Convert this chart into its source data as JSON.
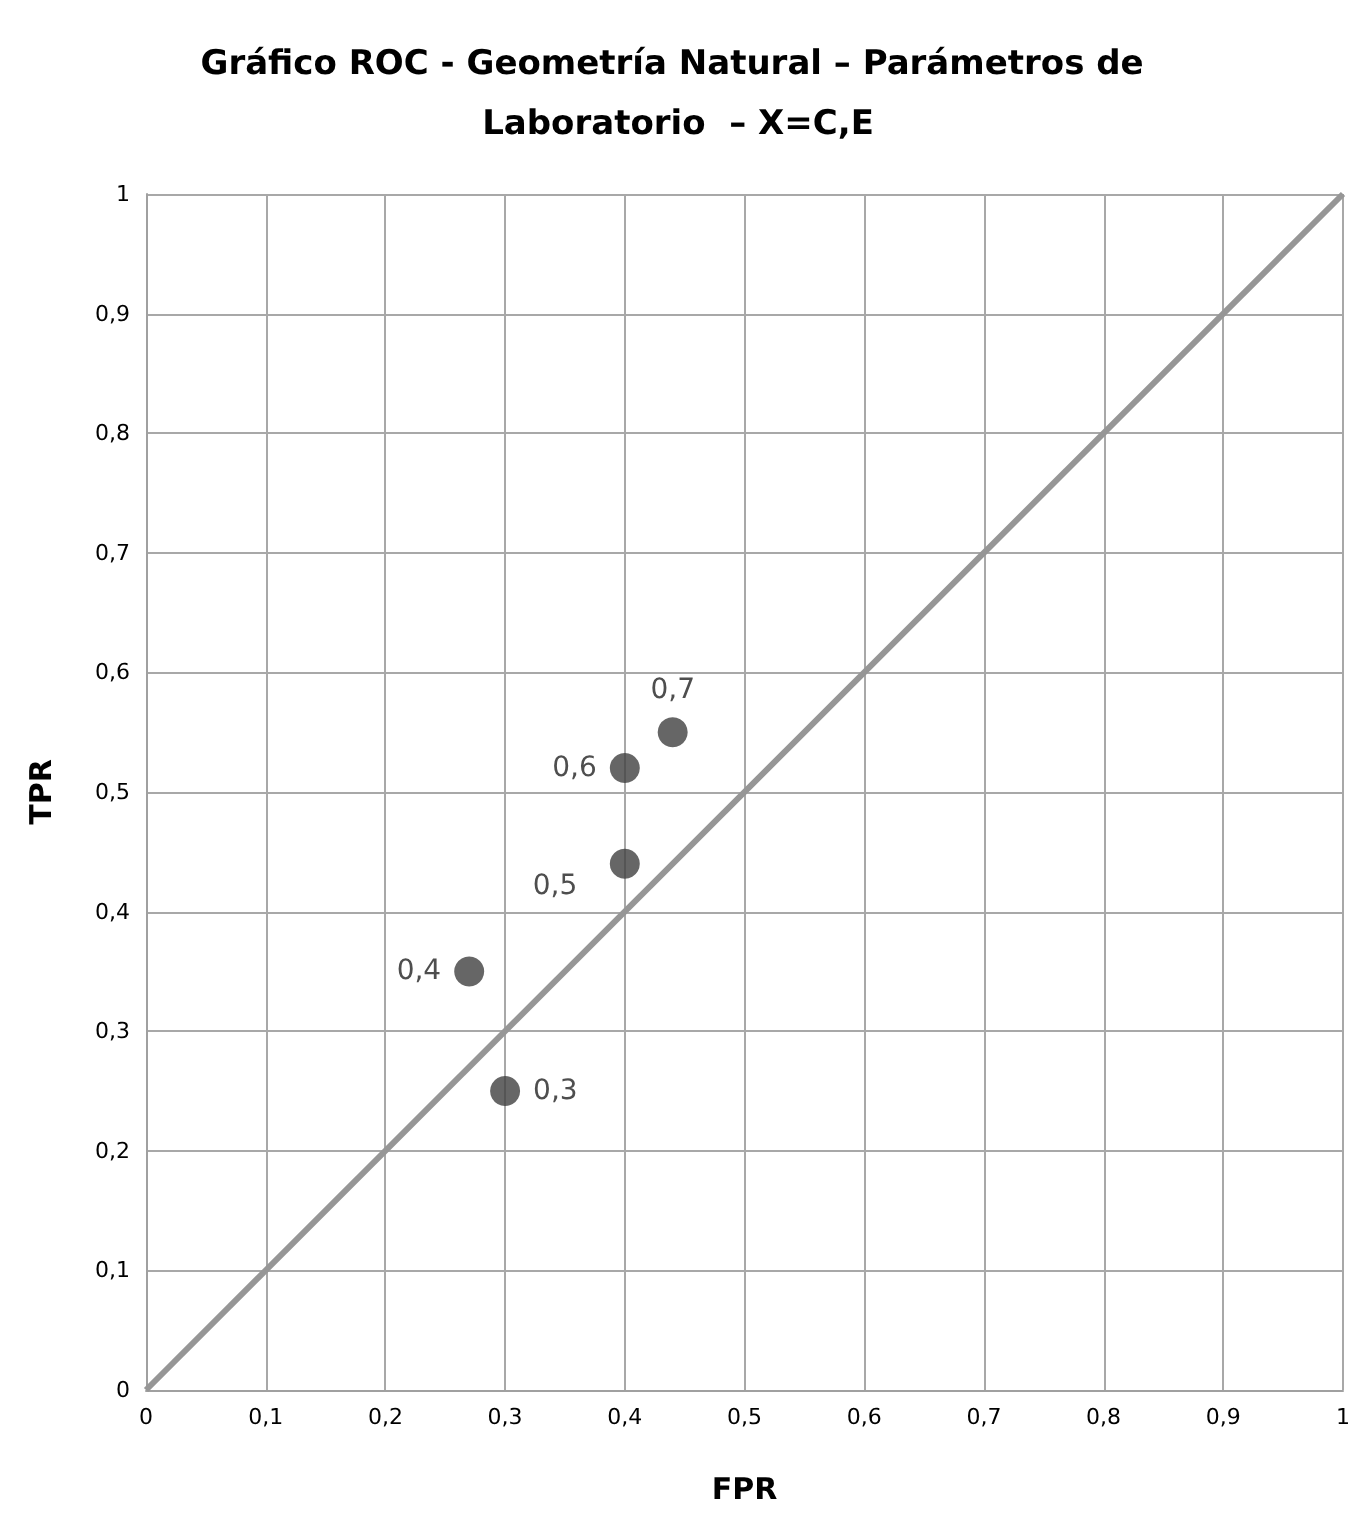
{
  "chart_data": {
    "type": "scatter",
    "title": "Gráfico ROC - Geometría Natural – Parámetros de Laboratorio  – X=C,E",
    "xlabel": "FPR",
    "ylabel": "TPR",
    "series": [
      {
        "type": "line",
        "color": "#969696",
        "x": [
          0,
          1
        ],
        "values": [
          0,
          1
        ],
        "marker": "none"
      },
      {
        "color": "#404040",
        "x": [
          0.3,
          0.27,
          0.4,
          0.4,
          0.44
        ],
        "values": [
          0.25,
          0.35,
          0.44,
          0.52,
          0.55
        ],
        "marker": "circle"
      }
    ],
    "annotations": [
      {
        "text": "0,3",
        "x": 0.3,
        "y": 0.25
      },
      {
        "text": "0,4",
        "x": 0.27,
        "y": 0.35
      },
      {
        "text": "0,5",
        "x": 0.4,
        "y": 0.44
      },
      {
        "text": "0,6",
        "x": 0.4,
        "y": 0.52
      },
      {
        "text": "0,7",
        "x": 0.44,
        "y": 0.55
      }
    ],
    "xlim": [
      0,
      1
    ],
    "ylim": [
      0,
      1
    ],
    "xticks": [
      0,
      {
        "value": 0.1,
        "label": "0,1"
      },
      {
        "value": 0.2,
        "label": "0,2"
      },
      {
        "value": 0.3,
        "label": "0,3"
      },
      {
        "value": 0.4,
        "label": "0,4"
      },
      {
        "value": 0.5,
        "label": "0,5"
      },
      {
        "value": 0.6,
        "label": "0,6"
      },
      {
        "value": 0.7,
        "label": "0,7"
      },
      {
        "value": 0.8,
        "label": "0,8"
      },
      {
        "value": 0.9,
        "label": "0,9"
      },
      1
    ],
    "yticks": [
      0,
      {
        "value": 0.1,
        "label": "0,1"
      },
      {
        "value": 0.2,
        "label": "0,2"
      },
      {
        "value": 0.3,
        "label": "0,3"
      },
      {
        "value": 0.4,
        "label": "0,4"
      },
      {
        "value": 0.5,
        "label": "0,5"
      },
      {
        "value": 0.6,
        "label": "0,6"
      },
      {
        "value": 0.7,
        "label": "0,7"
      },
      {
        "value": 0.8,
        "label": "0,8"
      },
      {
        "value": 0.9,
        "label": "0,9"
      },
      1
    ],
    "grid": true
  }
}
